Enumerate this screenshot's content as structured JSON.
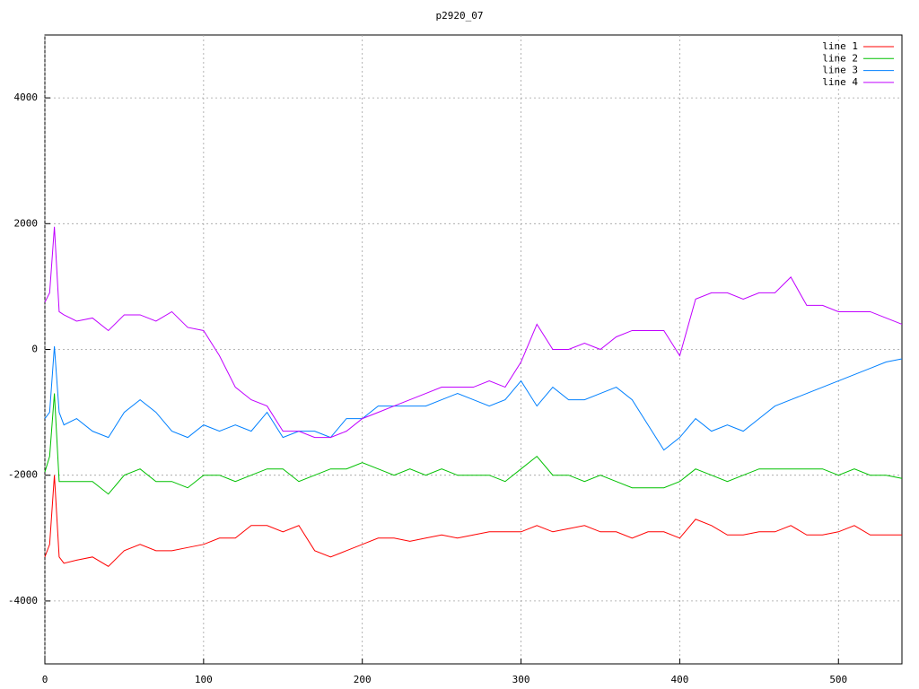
{
  "chart_data": {
    "type": "line",
    "title": "p2920_07",
    "x": [
      0,
      3,
      6,
      9,
      12,
      20,
      30,
      40,
      50,
      60,
      70,
      80,
      90,
      100,
      110,
      120,
      130,
      140,
      150,
      160,
      170,
      180,
      190,
      200,
      210,
      220,
      230,
      240,
      250,
      260,
      270,
      280,
      290,
      300,
      310,
      320,
      330,
      340,
      350,
      360,
      370,
      380,
      390,
      400,
      410,
      420,
      430,
      440,
      450,
      460,
      470,
      480,
      490,
      500,
      510,
      520,
      530,
      540
    ],
    "series": [
      {
        "name": "line 1",
        "color": "#ff0000",
        "values": [
          -3300,
          -3100,
          -2000,
          -3300,
          -3400,
          -3350,
          -3300,
          -3450,
          -3200,
          -3100,
          -3200,
          -3200,
          -3150,
          -3100,
          -3000,
          -3000,
          -2800,
          -2800,
          -2900,
          -2800,
          -3200,
          -3300,
          -3200,
          -3100,
          -3000,
          -3000,
          -3050,
          -3000,
          -2950,
          -3000,
          -2950,
          -2900,
          -2900,
          -2900,
          -2800,
          -2900,
          -2850,
          -2800,
          -2900,
          -2900,
          -3000,
          -2900,
          -2900,
          -3000,
          -2700,
          -2800,
          -2950,
          -2950,
          -2900,
          -2900,
          -2800,
          -2950,
          -2950,
          -2900,
          -2800,
          -2950,
          -2950,
          -2950
        ]
      },
      {
        "name": "line 2",
        "color": "#00c000",
        "values": [
          -1950,
          -1700,
          -700,
          -2100,
          -2100,
          -2100,
          -2100,
          -2300,
          -2000,
          -1900,
          -2100,
          -2100,
          -2200,
          -2000,
          -2000,
          -2100,
          -2000,
          -1900,
          -1900,
          -2100,
          -2000,
          -1900,
          -1900,
          -1800,
          -1900,
          -2000,
          -1900,
          -2000,
          -1900,
          -2000,
          -2000,
          -2000,
          -2100,
          -1900,
          -1700,
          -2000,
          -2000,
          -2100,
          -2000,
          -2100,
          -2200,
          -2200,
          -2200,
          -2100,
          -1900,
          -2000,
          -2100,
          -2000,
          -1900,
          -1900,
          -1900,
          -1900,
          -1900,
          -2000,
          -1900,
          -2000,
          -2000,
          -2050
        ]
      },
      {
        "name": "line 3",
        "color": "#0080ff",
        "values": [
          -1100,
          -1000,
          50,
          -1000,
          -1200,
          -1100,
          -1300,
          -1400,
          -1000,
          -800,
          -1000,
          -1300,
          -1400,
          -1200,
          -1300,
          -1200,
          -1300,
          -1000,
          -1400,
          -1300,
          -1300,
          -1400,
          -1100,
          -1100,
          -900,
          -900,
          -900,
          -900,
          -800,
          -700,
          -800,
          -900,
          -800,
          -500,
          -900,
          -600,
          -800,
          -800,
          -700,
          -600,
          -800,
          -1200,
          -1600,
          -1400,
          -1100,
          -1300,
          -1200,
          -1300,
          -1100,
          -900,
          -800,
          -700,
          -600,
          -500,
          -400,
          -300,
          -200,
          -150
        ]
      },
      {
        "name": "line 4",
        "color": "#c000ff",
        "values": [
          750,
          900,
          1950,
          600,
          550,
          450,
          500,
          300,
          550,
          550,
          450,
          600,
          350,
          300,
          -100,
          -600,
          -800,
          -900,
          -1300,
          -1300,
          -1400,
          -1400,
          -1300,
          -1100,
          -1000,
          -900,
          -800,
          -700,
          -600,
          -600,
          -600,
          -500,
          -600,
          -200,
          400,
          0,
          0,
          100,
          0,
          200,
          300,
          300,
          300,
          -100,
          800,
          900,
          900,
          800,
          900,
          900,
          1150,
          700,
          700,
          600,
          600,
          600,
          500,
          400
        ]
      }
    ],
    "xlim": [
      0,
      540
    ],
    "ylim": [
      -5000,
      5000
    ],
    "xticks": [
      0,
      100,
      200,
      300,
      400,
      500
    ],
    "yticks": [
      -4000,
      -2000,
      0,
      2000,
      4000
    ],
    "grid": true,
    "legend": "top-right"
  }
}
